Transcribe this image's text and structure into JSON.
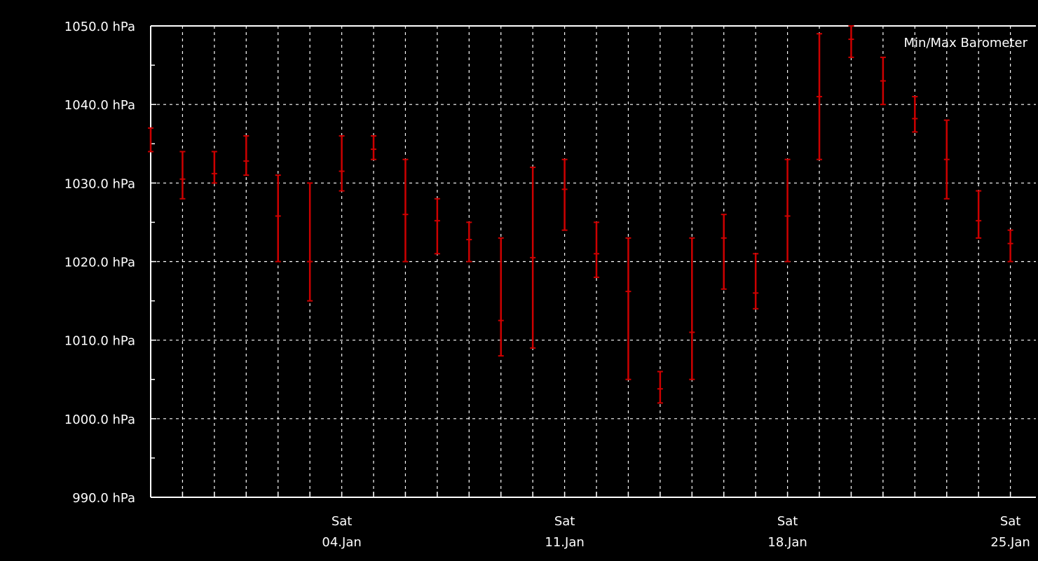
{
  "chart_data": {
    "type": "errorbar",
    "title": "Min/Max Barometer",
    "unit": "hPa",
    "ylim": [
      990.0,
      1050.0
    ],
    "y_ticks": [
      990.0,
      1000.0,
      1010.0,
      1020.0,
      1030.0,
      1040.0,
      1050.0
    ],
    "y_tick_labels": [
      "990.0 hPa",
      "1000.0 hPa",
      "1010.0 hPa",
      "1020.0 hPa",
      "1030.0 hPa",
      "1040.0 hPa",
      "1050.0 hPa"
    ],
    "x_labels": [
      {
        "day": "Sat",
        "date": "04.Jan"
      },
      {
        "day": "Sat",
        "date": "11.Jan"
      },
      {
        "day": "Sat",
        "date": "18.Jan"
      },
      {
        "day": "Sat",
        "date": "25.Jan"
      }
    ],
    "grid": true,
    "colors": {
      "background": "#000000",
      "frame": "#ffffff",
      "grid": "#ffffff",
      "series": "#cc0000",
      "text": "#ffffff"
    },
    "series": [
      {
        "values": [
          {
            "date": "2025-12-28",
            "min": 1034.0,
            "max": 1037.0,
            "mean": null
          },
          {
            "date": "2025-12-29",
            "min": 1028.0,
            "max": 1034.0,
            "mean": 1030.5
          },
          {
            "date": "2025-12-30",
            "min": 1030.0,
            "max": 1034.0,
            "mean": 1031.2
          },
          {
            "date": "2025-12-31",
            "min": 1031.0,
            "max": 1036.0,
            "mean": 1032.8
          },
          {
            "date": "2026-01-01",
            "min": 1020.0,
            "max": 1031.0,
            "mean": 1025.8
          },
          {
            "date": "2026-01-02",
            "min": 1015.0,
            "max": 1030.0,
            "mean": 1020.0
          },
          {
            "date": "2026-01-03",
            "min": 1029.0,
            "max": 1036.0,
            "mean": 1031.5
          },
          {
            "date": "2026-01-04",
            "min": 1033.0,
            "max": 1036.0,
            "mean": 1034.3
          },
          {
            "date": "2026-01-05",
            "min": 1020.0,
            "max": 1033.0,
            "mean": 1026.0
          },
          {
            "date": "2026-01-06",
            "min": 1021.0,
            "max": 1028.0,
            "mean": 1025.2
          },
          {
            "date": "2026-01-07",
            "min": 1020.0,
            "max": 1025.0,
            "mean": 1022.8
          },
          {
            "date": "2026-01-08",
            "min": 1008.0,
            "max": 1023.0,
            "mean": 1012.5
          },
          {
            "date": "2026-01-09",
            "min": 1009.0,
            "max": 1032.0,
            "mean": 1020.5
          },
          {
            "date": "2026-01-10",
            "min": 1024.0,
            "max": 1033.0,
            "mean": 1029.2
          },
          {
            "date": "2026-01-11",
            "min": 1018.0,
            "max": 1025.0,
            "mean": 1021.0
          },
          {
            "date": "2026-01-12",
            "min": 1005.0,
            "max": 1023.0,
            "mean": 1016.2
          },
          {
            "date": "2026-01-13",
            "min": 1002.0,
            "max": 1006.0,
            "mean": 1003.8
          },
          {
            "date": "2026-01-14",
            "min": 1005.0,
            "max": 1023.0,
            "mean": 1011.0
          },
          {
            "date": "2026-01-15",
            "min": 1016.5,
            "max": 1026.0,
            "mean": 1023.0
          },
          {
            "date": "2026-01-16",
            "min": 1014.0,
            "max": 1021.0,
            "mean": 1016.0
          },
          {
            "date": "2026-01-17",
            "min": 1020.0,
            "max": 1033.0,
            "mean": 1025.8
          },
          {
            "date": "2026-01-18",
            "min": 1033.0,
            "max": 1049.0,
            "mean": 1041.0
          },
          {
            "date": "2026-01-19",
            "min": 1046.0,
            "max": 1050.0,
            "mean": 1048.3
          },
          {
            "date": "2026-01-20",
            "min": 1040.0,
            "max": 1046.0,
            "mean": 1043.0
          },
          {
            "date": "2026-01-21",
            "min": 1036.5,
            "max": 1041.0,
            "mean": 1038.2
          },
          {
            "date": "2026-01-22",
            "min": 1028.0,
            "max": 1038.0,
            "mean": 1033.0
          },
          {
            "date": "2026-01-23",
            "min": 1023.0,
            "max": 1029.0,
            "mean": 1025.2
          },
          {
            "date": "2026-01-24",
            "min": 1020.0,
            "max": 1024.0,
            "mean": 1022.3
          }
        ]
      }
    ]
  }
}
